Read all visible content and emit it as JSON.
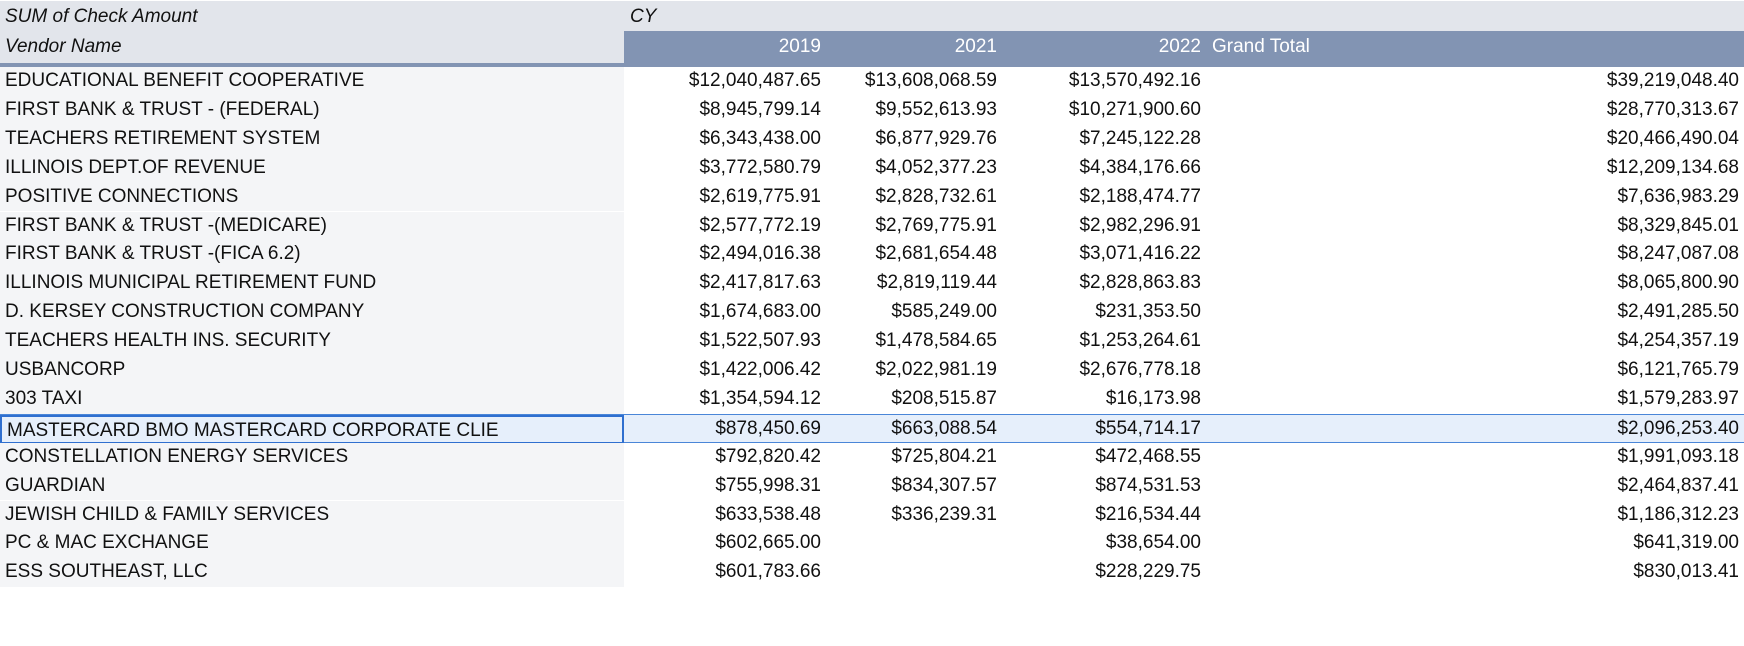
{
  "pivot": {
    "values_label": "SUM of Check Amount",
    "column_field": "CY",
    "row_field": "Vendor Name",
    "columns": [
      "2019",
      "2021",
      "2022",
      "Grand Total"
    ],
    "rows": [
      {
        "vendor": "EDUCATIONAL BENEFIT COOPERATIVE",
        "y2019": "$12,040,487.65",
        "y2021": "$13,608,068.59",
        "y2022": "$13,570,492.16",
        "total": "$39,219,048.40"
      },
      {
        "vendor": "FIRST BANK & TRUST - (FEDERAL)",
        "y2019": "$8,945,799.14",
        "y2021": "$9,552,613.93",
        "y2022": "$10,271,900.60",
        "total": "$28,770,313.67"
      },
      {
        "vendor": "TEACHERS RETIREMENT SYSTEM",
        "y2019": "$6,343,438.00",
        "y2021": "$6,877,929.76",
        "y2022": "$7,245,122.28",
        "total": "$20,466,490.04"
      },
      {
        "vendor": "ILLINOIS DEPT.OF REVENUE",
        "y2019": "$3,772,580.79",
        "y2021": "$4,052,377.23",
        "y2022": "$4,384,176.66",
        "total": "$12,209,134.68"
      },
      {
        "vendor": "POSITIVE CONNECTIONS",
        "y2019": "$2,619,775.91",
        "y2021": "$2,828,732.61",
        "y2022": "$2,188,474.77",
        "total": "$7,636,983.29"
      },
      {
        "vendor": "FIRST BANK & TRUST -(MEDICARE)",
        "y2019": "$2,577,772.19",
        "y2021": "$2,769,775.91",
        "y2022": "$2,982,296.91",
        "total": "$8,329,845.01"
      },
      {
        "vendor": "FIRST BANK & TRUST -(FICA 6.2)",
        "y2019": "$2,494,016.38",
        "y2021": "$2,681,654.48",
        "y2022": "$3,071,416.22",
        "total": "$8,247,087.08"
      },
      {
        "vendor": "ILLINOIS MUNICIPAL RETIREMENT FUND",
        "y2019": "$2,417,817.63",
        "y2021": "$2,819,119.44",
        "y2022": "$2,828,863.83",
        "total": "$8,065,800.90"
      },
      {
        "vendor": "D. KERSEY CONSTRUCTION COMPANY",
        "y2019": "$1,674,683.00",
        "y2021": "$585,249.00",
        "y2022": "$231,353.50",
        "total": "$2,491,285.50"
      },
      {
        "vendor": "TEACHERS HEALTH INS. SECURITY",
        "y2019": "$1,522,507.93",
        "y2021": "$1,478,584.65",
        "y2022": "$1,253,264.61",
        "total": "$4,254,357.19"
      },
      {
        "vendor": "USBANCORP",
        "y2019": "$1,422,006.42",
        "y2021": "$2,022,981.19",
        "y2022": "$2,676,778.18",
        "total": "$6,121,765.79"
      },
      {
        "vendor": "303 TAXI",
        "y2019": "$1,354,594.12",
        "y2021": "$208,515.87",
        "y2022": "$16,173.98",
        "total": "$1,579,283.97"
      },
      {
        "vendor": "MASTERCARD BMO MASTERCARD CORPORATE CLIE",
        "y2019": "$878,450.69",
        "y2021": "$663,088.54",
        "y2022": "$554,714.17",
        "total": "$2,096,253.40",
        "selected": true
      },
      {
        "vendor": "CONSTELLATION ENERGY SERVICES",
        "y2019": "$792,820.42",
        "y2021": "$725,804.21",
        "y2022": "$472,468.55",
        "total": "$1,991,093.18"
      },
      {
        "vendor": "GUARDIAN",
        "y2019": "$755,998.31",
        "y2021": "$834,307.57",
        "y2022": "$874,531.53",
        "total": "$2,464,837.41"
      },
      {
        "vendor": "JEWISH CHILD & FAMILY SERVICES",
        "y2019": "$633,538.48",
        "y2021": "$336,239.31",
        "y2022": "$216,534.44",
        "total": "$1,186,312.23"
      },
      {
        "vendor": "PC & MAC EXCHANGE",
        "y2019": "$602,665.00",
        "y2021": "",
        "y2022": "$38,654.00",
        "total": "$641,319.00"
      },
      {
        "vendor": "ESS SOUTHEAST, LLC",
        "y2019": "$601,783.66",
        "y2021": "",
        "y2022": "$228,229.75",
        "total": "$830,013.41"
      }
    ]
  }
}
